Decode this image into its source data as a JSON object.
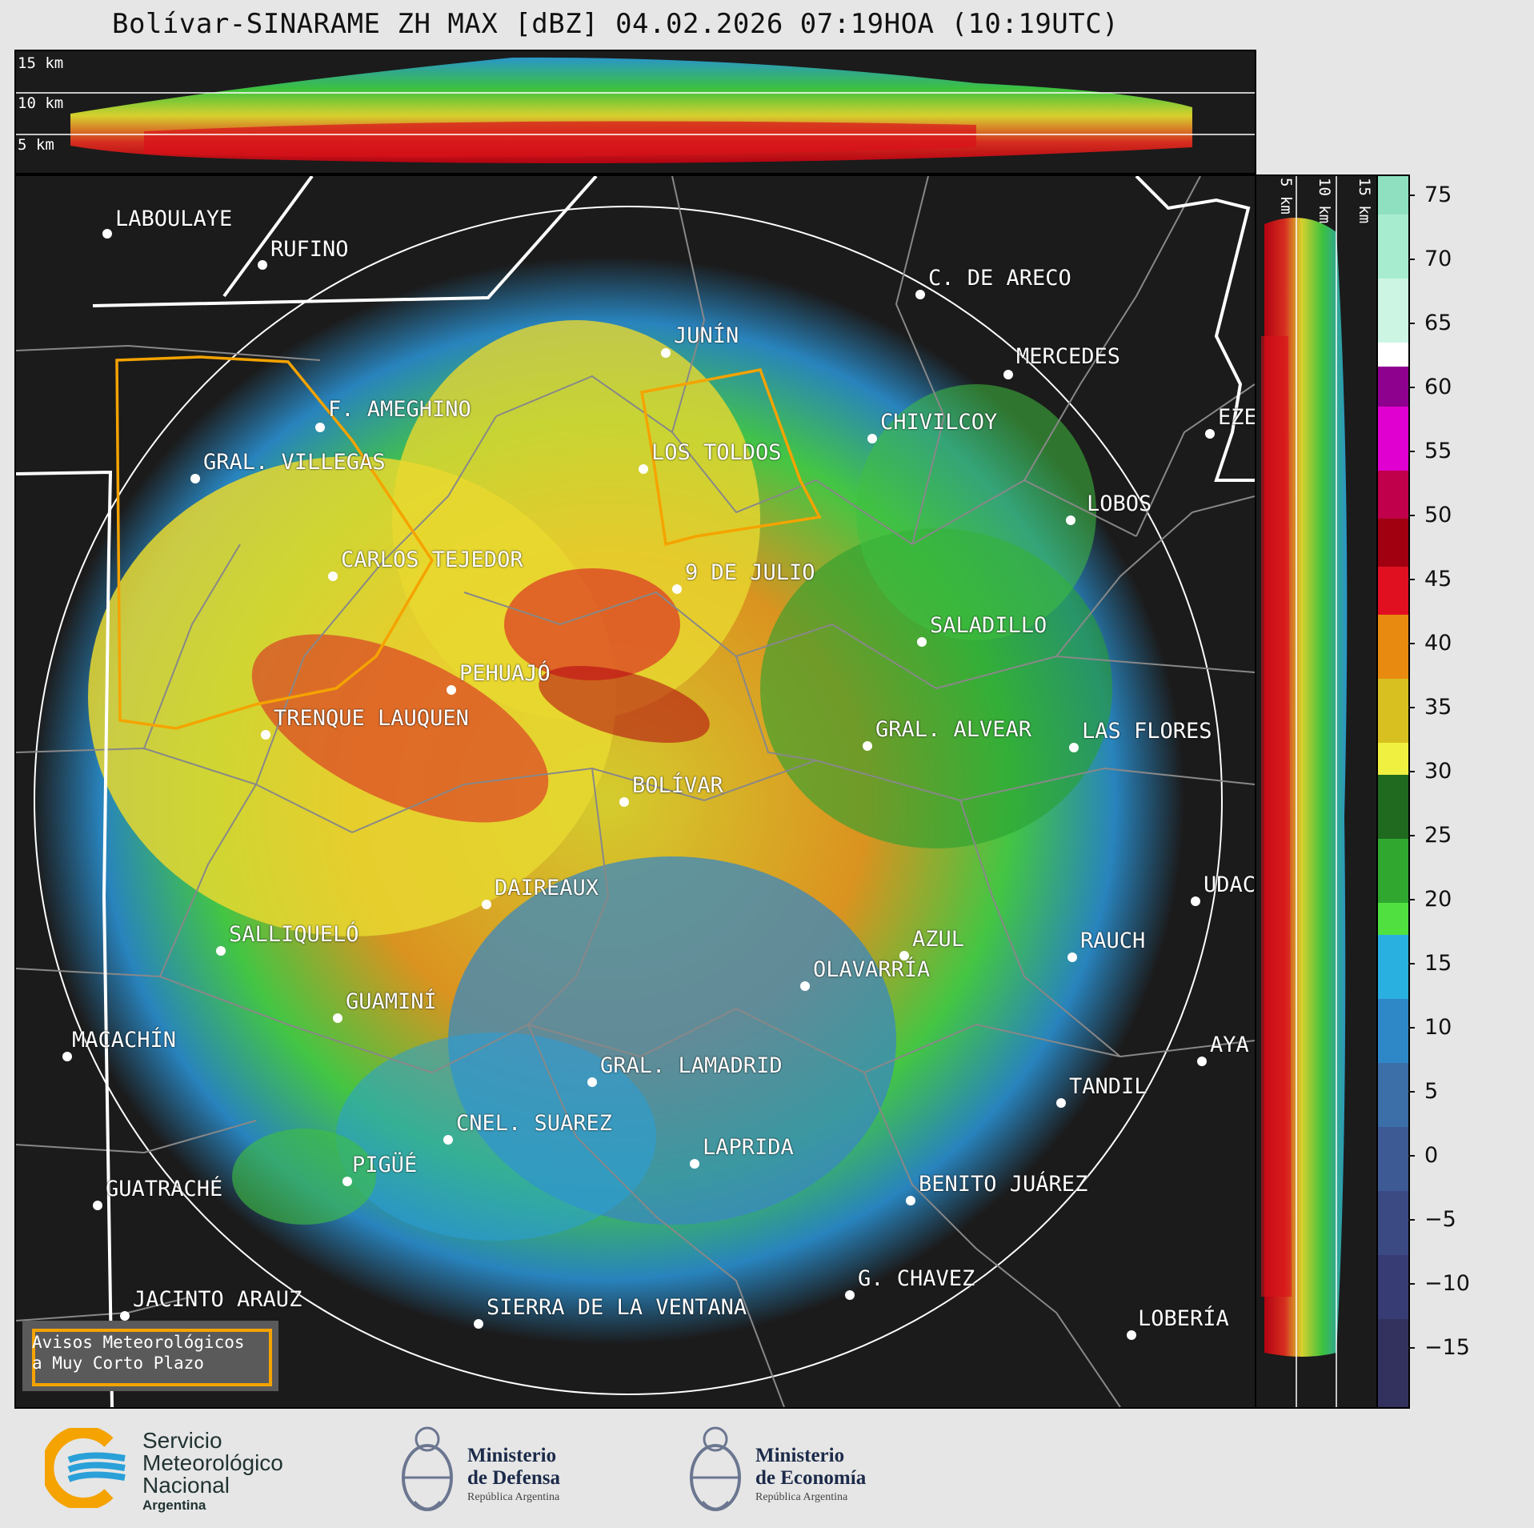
{
  "title": "Bolívar-SINARAME ZH MAX [dBZ] 04.02.2026 07:19HOA (10:19UTC)",
  "top_panel": {
    "km_labels": [
      "15 km",
      "10 km",
      "5 km"
    ]
  },
  "side_panel": {
    "km_labels": [
      "5 km",
      "10 km",
      "15 km"
    ]
  },
  "colorbar": {
    "unit": "dBZ",
    "ticks": [
      "75",
      "70",
      "65",
      "60",
      "55",
      "50",
      "45",
      "40",
      "35",
      "30",
      "25",
      "20",
      "15",
      "10",
      "5",
      "0",
      "−5",
      "−10",
      "−15"
    ],
    "min": -19,
    "max": 77
  },
  "cities": [
    {
      "name": "LABOULAYE"
    },
    {
      "name": "RUFINO"
    },
    {
      "name": "C. DE ARECO"
    },
    {
      "name": "MERCEDES"
    },
    {
      "name": "JUNÍN"
    },
    {
      "name": "F. AMEGHINO"
    },
    {
      "name": "CHIVILCOY"
    },
    {
      "name": "EZE"
    },
    {
      "name": "GRAL. VILLEGAS"
    },
    {
      "name": "LOS TOLDOS"
    },
    {
      "name": "LOBOS"
    },
    {
      "name": "CARLOS TEJEDOR"
    },
    {
      "name": "9 DE JULIO"
    },
    {
      "name": "SALADILLO"
    },
    {
      "name": "PEHUAJÓ"
    },
    {
      "name": "TRENQUE LAUQUEN"
    },
    {
      "name": "GRAL. ALVEAR"
    },
    {
      "name": "LAS FLORES"
    },
    {
      "name": "BOLÍVAR"
    },
    {
      "name": "DAIREAUX"
    },
    {
      "name": "UDAC"
    },
    {
      "name": "SALLIQUELÓ"
    },
    {
      "name": "AZUL"
    },
    {
      "name": "RAUCH"
    },
    {
      "name": "OLAVARRÍA"
    },
    {
      "name": "GUAMINÍ"
    },
    {
      "name": "MACACHÍN"
    },
    {
      "name": "AYA"
    },
    {
      "name": "GRAL. LAMADRID"
    },
    {
      "name": "TANDIL"
    },
    {
      "name": "CNEL. SUAREZ"
    },
    {
      "name": "LAPRIDA"
    },
    {
      "name": "PIGÜÉ"
    },
    {
      "name": "BENITO JUÁREZ"
    },
    {
      "name": "GUATRACHÉ"
    },
    {
      "name": "G. CHAVEZ"
    },
    {
      "name": "JACINTO ARAUZ"
    },
    {
      "name": "SIERRA DE LA VENTANA"
    },
    {
      "name": "LOBERÍA"
    }
  ],
  "legend": {
    "line1": "Avisos Meteorológicos",
    "line2": "a Muy Corto Plazo",
    "outline_color": "#f5a300"
  },
  "logos": {
    "smn": {
      "line1": "Servicio",
      "line2": "Meteorológico",
      "line3": "Nacional",
      "line4": "Argentina"
    },
    "defensa": {
      "line1": "Ministerio",
      "line2": "de Defensa",
      "line3": "República Argentina"
    },
    "economia": {
      "line1": "Ministerio",
      "line2": "de Economía",
      "line3": "República Argentina"
    }
  }
}
